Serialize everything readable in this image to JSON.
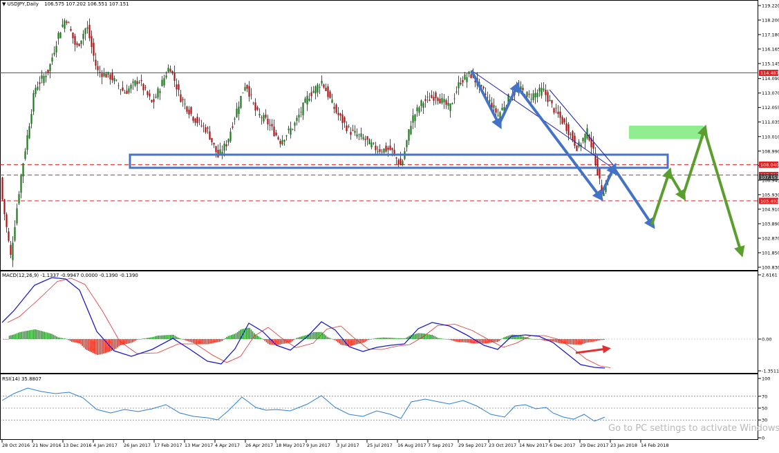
{
  "window": {
    "symbol_label": "USDJPY,Daily",
    "ohlc": "106.575 107.202 106.551 107.151",
    "menu_icon": "triangle-down-icon"
  },
  "price_axis": {
    "ticks": [
      "119.220",
      "118.200",
      "117.180",
      "116.165",
      "115.145",
      "114.090",
      "113.070",
      "112.055",
      "111.035",
      "110.010",
      "108.990",
      "107.975",
      "106.945",
      "105.930",
      "104.910",
      "103.890",
      "102.870",
      "101.850",
      "100.830"
    ],
    "levels": [
      {
        "value": 114.487,
        "label": "114.487",
        "color": "#e02020",
        "style": "solid"
      },
      {
        "value": 108.04,
        "label": "108.040",
        "color": "#e02020",
        "style": "dashed"
      },
      {
        "value": 107.313,
        "label": "107.313",
        "color": "#e02020",
        "style": "dashed"
      },
      {
        "value": 105.492,
        "label": "105.492",
        "color": "#e02020",
        "style": "dashed"
      }
    ],
    "current_price": "107.151"
  },
  "macd": {
    "label": "MACD(12,26,9) -1.1337 -0.9947 0.0000 -0.1390 -0.1390",
    "ticks": [
      "2.6161",
      "0.00",
      "-1.3511"
    ]
  },
  "rsi": {
    "label": "RSI(14) 35.8807",
    "ticks": [
      "100",
      "70",
      "50",
      "30",
      "0"
    ]
  },
  "time_axis": {
    "labels": [
      "28 Oct 2016",
      "21 Nov 2016",
      "13 Dec 2016",
      "4 Jan 2017",
      "26 Jan 2017",
      "17 Feb 2017",
      "13 Mar 2017",
      "4 Apr 2017",
      "26 Apr 2017",
      "18 May 2017",
      "9 Jun 2017",
      "3 Jul 2017",
      "25 Jul 2017",
      "16 Aug 2017",
      "7 Sep 2017",
      "29 Sep 2017",
      "23 Oct 2017",
      "14 Nov 2017",
      "6 Dec 2017",
      "29 Dec 2017",
      "23 Jan 2018",
      "14 Feb 2018"
    ]
  },
  "watermark": "Go to PC settings to activate Windows",
  "colors": {
    "bull": "#1c7a1c",
    "bear": "#b01010",
    "blue_path": "#4472c4",
    "green_path": "#5a9e2e",
    "zone_green": "#90ee90",
    "macd_line": "#1a1acc",
    "signal_line": "#e03030",
    "hist_pos": "#2a9a2a",
    "hist_neg": "#e83020",
    "rsi_line": "#2b7fd4"
  }
}
